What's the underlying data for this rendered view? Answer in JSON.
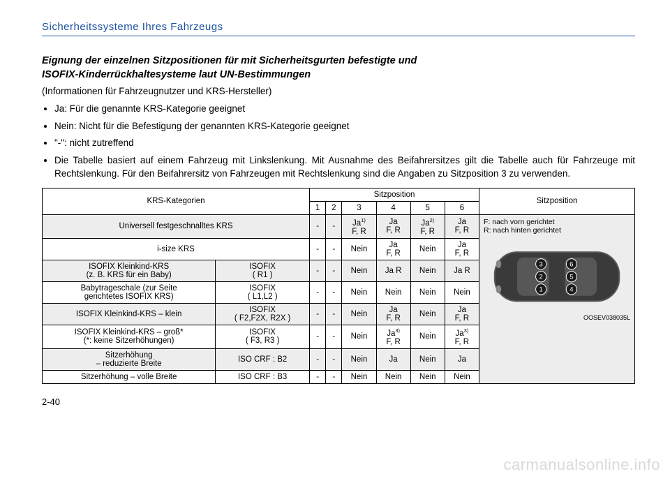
{
  "header": "Sicherheitssysteme Ihres Fahrzeugs",
  "title_line1": "Eignung der einzelnen Sitzpositionen für mit Sicherheitsgurten befestigte und",
  "title_line2": "ISOFIX-Kinderrückhaltesysteme laut UN-Bestimmungen",
  "subtitle": "(Informationen für Fahrzeugnutzer und KRS-Hersteller)",
  "bullets": [
    "Ja: Für die genannte KRS-Kategorie geeignet",
    "Nein: Nicht für die Befestigung der genannten KRS-Kategorie geeignet",
    "\"-\": nicht zutreffend",
    "Die Tabelle basiert auf einem Fahrzeug mit Linkslenkung. Mit Ausnahme des Beifahrersitzes gilt die Tabelle auch für Fahrzeuge mit Rechtslenkung. Für den Beifahrersitz von Fahrzeugen mit Rechtslenkung sind die Angaben zu Sitzposition 3 zu verwenden."
  ],
  "table": {
    "col_kategorien": "KRS-Kategorien",
    "col_sitzposition_group": "Sitzposition",
    "col_sitzposition_legend": "Sitzposition",
    "pos_headers": [
      "1",
      "2",
      "3",
      "4",
      "5",
      "6"
    ],
    "rows": [
      {
        "cat": "Universell festgeschnalltes KRS",
        "sub": "",
        "v": [
          "-",
          "-",
          "Ja<sup class='sup'>1)</sup><br>F, R",
          "Ja<br>F, R",
          "Ja<sup class='sup'>2)</sup><br>F, R",
          "Ja<br>F, R"
        ],
        "alt": true
      },
      {
        "cat": "i-size KRS",
        "sub": "",
        "v": [
          "-",
          "-",
          "Nein",
          "Ja<br>F, R",
          "Nein",
          "Ja<br>F, R"
        ],
        "alt": false
      },
      {
        "cat": "ISOFIX Kleinkind-KRS<br>(z. B. KRS für ein Baby)",
        "sub": "ISOFIX<br>( R1 )",
        "v": [
          "-",
          "-",
          "Nein",
          "Ja R",
          "Nein",
          "Ja R"
        ],
        "alt": true
      },
      {
        "cat": "Babytrageschale (zur Seite<br>gerichtetes ISOFIX KRS)",
        "sub": "ISOFIX<br>( L1,L2 )",
        "v": [
          "-",
          "-",
          "Nein",
          "Nein",
          "Nein",
          "Nein"
        ],
        "alt": false
      },
      {
        "cat": "ISOFIX Kleinkind-KRS – klein",
        "sub": "ISOFIX<br>( F2,F2X, R2X )",
        "v": [
          "-",
          "-",
          "Nein",
          "Ja<br>F, R",
          "Nein",
          "Ja<br>F, R"
        ],
        "alt": true
      },
      {
        "cat": "ISOFIX Kleinkind-KRS – groß*<br>(*: keine Sitzerhöhungen)",
        "sub": "ISOFIX<br>( F3, R3 )",
        "v": [
          "-",
          "-",
          "Nein",
          "Ja<sup class='sup'>3)</sup><br>F, R",
          "Nein",
          "Ja<sup class='sup'>3)</sup><br>F, R"
        ],
        "alt": false
      },
      {
        "cat": "Sitzerhöhung<br>– reduzierte Breite",
        "sub": "ISO CRF : B2",
        "v": [
          "-",
          "-",
          "Nein",
          "Ja",
          "Nein",
          "Ja"
        ],
        "alt": true
      },
      {
        "cat": "Sitzerhöhung – volle Breite",
        "sub": "ISO CRF : B3",
        "v": [
          "-",
          "-",
          "Nein",
          "Nein",
          "Nein",
          "Nein"
        ],
        "alt": false
      }
    ],
    "legend_f": "F: nach vorn gerichtet",
    "legend_r": "R: nach hinten gerichtet",
    "image_code": "OOSEV038035L"
  },
  "page_number": "2-40",
  "watermark": "carmanualsonline.info",
  "car": {
    "body_fill": "#3a3a3a",
    "body_stroke": "#5a5a5a",
    "glass_fill": "#575757",
    "seat_labels": [
      "1",
      "2",
      "3",
      "4",
      "5",
      "6"
    ],
    "label_bg": "#1b1b1b",
    "label_fg": "#ffffff"
  }
}
